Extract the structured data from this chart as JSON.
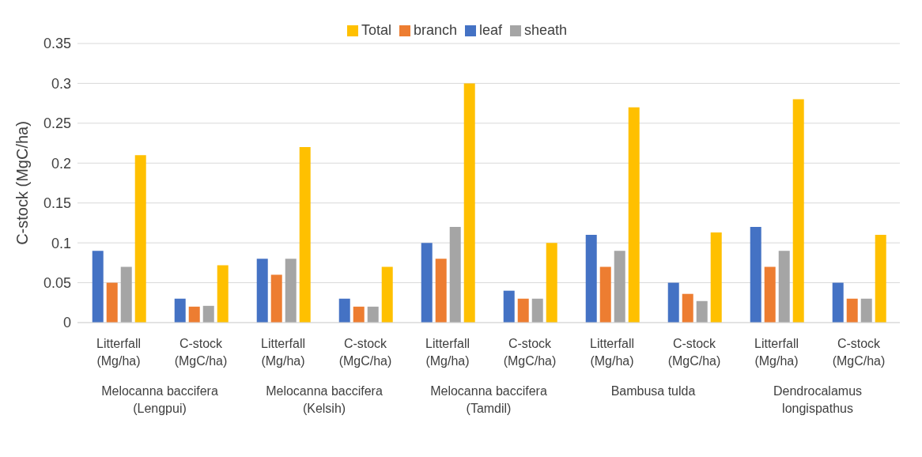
{
  "chart_data": {
    "type": "bar",
    "ylabel": "C-stock (MgC/ha)",
    "categories": [
      "Litterfall (Mg/ha)",
      "C-stock (MgC/ha)",
      "Litterfall (Mg/ha)",
      "C-stock (MgC/ha)",
      "Litterfall (Mg/ha)",
      "C-stock (MgC/ha)",
      "Litterfall (Mg/ha)",
      "C-stock (MgC/ha)",
      "Litterfall (Mg/ha)",
      "C-stock (MgC/ha)"
    ],
    "series": [
      {
        "name": "leaf",
        "color": "#4472c4",
        "values": [
          0.09,
          0.03,
          0.08,
          0.03,
          0.1,
          0.04,
          0.11,
          0.05,
          0.12,
          0.05
        ]
      },
      {
        "name": "branch",
        "color": "#ed7d31",
        "values": [
          0.05,
          0.02,
          0.06,
          0.02,
          0.08,
          0.03,
          0.07,
          0.036,
          0.07,
          0.03
        ]
      },
      {
        "name": "sheath",
        "color": "#a5a5a5",
        "values": [
          0.07,
          0.021,
          0.08,
          0.02,
          0.12,
          0.03,
          0.09,
          0.027,
          0.09,
          0.03
        ]
      },
      {
        "name": "Total",
        "color": "#ffc000",
        "values": [
          0.21,
          0.072,
          0.22,
          0.07,
          0.3,
          0.1,
          0.27,
          0.113,
          0.28,
          0.11
        ]
      }
    ],
    "annotations": [
      "Melocanna baccifera (Lengpui)",
      "Melocanna baccifera (Kelsih)",
      "Melocanna baccifera (Tamdil)",
      "Bambusa tulda",
      "Dendrocalamus longispathus"
    ],
    "ylim": [
      0,
      0.35
    ],
    "yticks": [
      0,
      0.05,
      0.1,
      0.15,
      0.2,
      0.25,
      0.3,
      0.35
    ],
    "grid": "y",
    "legend": "top"
  }
}
